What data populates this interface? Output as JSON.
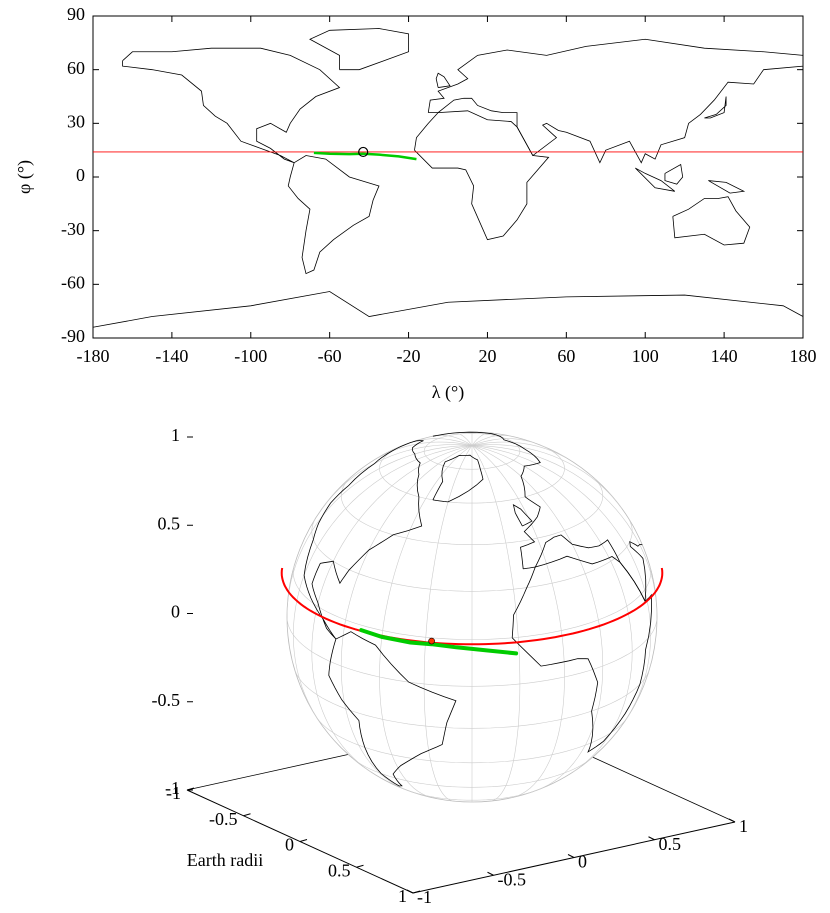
{
  "chart_data": [
    {
      "type": "map",
      "x_label": "λ (°)",
      "y_label": "φ (°)",
      "xlim": [
        -180,
        180
      ],
      "xticks": [
        -180,
        -140,
        -100,
        -60,
        -20,
        20,
        60,
        100,
        140,
        180
      ],
      "ylim": [
        -90,
        90
      ],
      "yticks": [
        -90,
        -60,
        -30,
        0,
        30,
        60,
        90
      ],
      "reference_line": {
        "y": 14,
        "color": "#ff0000"
      },
      "point": {
        "x": -43,
        "y": 14
      },
      "series": [
        {
          "color": "#00cc00",
          "x": [
            -68,
            -60,
            -50,
            -43,
            -35,
            -25,
            -16
          ],
          "values": [
            13.5,
            13,
            12.8,
            13,
            12.5,
            11.5,
            10
          ]
        }
      ]
    },
    {
      "type": "globe",
      "axis_label": "Earth radii",
      "xlim": [
        -1,
        1
      ],
      "xticks": [
        -1,
        -0.5,
        0,
        0.5,
        1
      ],
      "ylim": [
        -1,
        1
      ],
      "yticks": [
        -1,
        -0.5,
        0,
        0.5,
        1
      ],
      "zlim": [
        -1,
        1
      ],
      "zticks": [
        -1,
        -0.5,
        0,
        0.5,
        1
      ],
      "reference_line": {
        "y": 14,
        "color": "#ff0000"
      },
      "point": {
        "x": -43,
        "y": 14
      },
      "series": [
        {
          "color": "#00cc00",
          "x": [
            -68,
            -60,
            -50,
            -43,
            -35,
            -25,
            -16
          ],
          "values": [
            13.5,
            13,
            12.8,
            13,
            12.5,
            11.5,
            10
          ]
        }
      ]
    }
  ]
}
